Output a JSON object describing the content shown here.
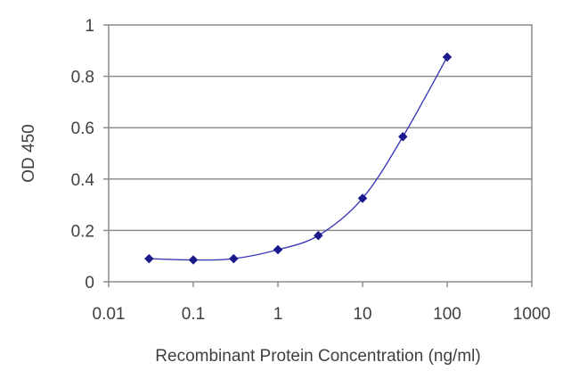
{
  "chart_data": {
    "type": "line",
    "title": "",
    "xlabel": "Recombinant Protein Concentration (ng/ml)",
    "ylabel": "OD 450",
    "xscale": "log",
    "xlim": [
      0.01,
      1000
    ],
    "ylim": [
      0,
      1
    ],
    "grid": "horizontal",
    "x_ticks": [
      "0.01",
      "0.1",
      "1",
      "10",
      "100",
      "1000"
    ],
    "y_ticks": [
      "0",
      "0.2",
      "0.4",
      "0.6",
      "0.8",
      "1"
    ],
    "series": [
      {
        "x": [
          0.03,
          0.1,
          0.3,
          1,
          3,
          10,
          30,
          100
        ],
        "y": [
          0.09,
          0.085,
          0.09,
          0.125,
          0.18,
          0.325,
          0.565,
          0.875
        ],
        "color": "#1a1a8c",
        "marker": "diamond"
      }
    ]
  }
}
